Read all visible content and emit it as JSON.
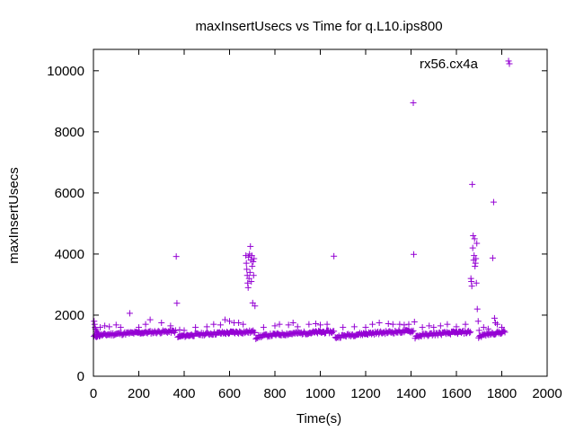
{
  "chart_data": {
    "type": "scatter",
    "title": "maxInsertUsecs vs Time for q.L10.ips800",
    "xlabel": "Time(s)",
    "ylabel": "maxInsertUsecs",
    "xlim": [
      0,
      2000
    ],
    "ylim": [
      0,
      10700
    ],
    "x_ticks": [
      0,
      200,
      400,
      600,
      800,
      1000,
      1200,
      1400,
      1600,
      1800,
      2000
    ],
    "y_ticks": [
      0,
      2000,
      4000,
      6000,
      8000,
      10000
    ],
    "grid": false,
    "legend_position": "top-right",
    "marker": "plus",
    "colors": {
      "series": "#9400d3",
      "axis": "#000000",
      "background": "#ffffff"
    },
    "series": [
      {
        "name": "rx56.cx4a",
        "baseline_segments": [
          {
            "x_start": 2,
            "x_end": 365,
            "y_start": 1290,
            "y_end": 1470,
            "step": 4
          },
          {
            "x_start": 372,
            "x_end": 712,
            "y_start": 1270,
            "y_end": 1460,
            "step": 4
          },
          {
            "x_start": 716,
            "x_end": 1062,
            "y_start": 1260,
            "y_end": 1460,
            "step": 4
          },
          {
            "x_start": 1066,
            "x_end": 1412,
            "y_start": 1250,
            "y_end": 1480,
            "step": 4
          },
          {
            "x_start": 1418,
            "x_end": 1662,
            "y_start": 1280,
            "y_end": 1450,
            "step": 4
          },
          {
            "x_start": 1698,
            "x_end": 1815,
            "y_start": 1270,
            "y_end": 1450,
            "step": 4
          }
        ],
        "points": [
          [
            3,
            1800
          ],
          [
            5,
            1700
          ],
          [
            7,
            1600
          ],
          [
            9,
            1550
          ],
          [
            12,
            1500
          ],
          [
            15,
            1450
          ],
          [
            18,
            1420
          ],
          [
            22,
            1380
          ],
          [
            30,
            1600
          ],
          [
            50,
            1650
          ],
          [
            70,
            1620
          ],
          [
            100,
            1680
          ],
          [
            120,
            1600
          ],
          [
            160,
            2060
          ],
          [
            200,
            1600
          ],
          [
            230,
            1700
          ],
          [
            250,
            1850
          ],
          [
            300,
            1750
          ],
          [
            340,
            1650
          ],
          [
            365,
            3920
          ],
          [
            368,
            2390
          ],
          [
            380,
            1520
          ],
          [
            400,
            1500
          ],
          [
            450,
            1600
          ],
          [
            500,
            1620
          ],
          [
            530,
            1700
          ],
          [
            560,
            1680
          ],
          [
            580,
            1850
          ],
          [
            600,
            1800
          ],
          [
            620,
            1750
          ],
          [
            640,
            1750
          ],
          [
            660,
            1700
          ],
          [
            672,
            3950
          ],
          [
            674,
            3700
          ],
          [
            676,
            3500
          ],
          [
            678,
            3300
          ],
          [
            680,
            3050
          ],
          [
            682,
            2900
          ],
          [
            684,
            3900
          ],
          [
            686,
            3200
          ],
          [
            688,
            4000
          ],
          [
            690,
            3400
          ],
          [
            692,
            4250
          ],
          [
            694,
            3800
          ],
          [
            696,
            3100
          ],
          [
            698,
            3950
          ],
          [
            700,
            3600
          ],
          [
            702,
            2400
          ],
          [
            704,
            3750
          ],
          [
            706,
            3300
          ],
          [
            708,
            3850
          ],
          [
            712,
            2300
          ],
          [
            750,
            1600
          ],
          [
            800,
            1650
          ],
          [
            820,
            1700
          ],
          [
            860,
            1680
          ],
          [
            880,
            1750
          ],
          [
            900,
            1620
          ],
          [
            950,
            1700
          ],
          [
            980,
            1720
          ],
          [
            1000,
            1680
          ],
          [
            1030,
            1700
          ],
          [
            1060,
            3930
          ],
          [
            1100,
            1600
          ],
          [
            1150,
            1620
          ],
          [
            1200,
            1600
          ],
          [
            1230,
            1700
          ],
          [
            1260,
            1750
          ],
          [
            1300,
            1720
          ],
          [
            1320,
            1700
          ],
          [
            1350,
            1700
          ],
          [
            1370,
            1680
          ],
          [
            1390,
            1700
          ],
          [
            1410,
            8950
          ],
          [
            1412,
            3990
          ],
          [
            1415,
            1780
          ],
          [
            1450,
            1600
          ],
          [
            1480,
            1650
          ],
          [
            1500,
            1600
          ],
          [
            1530,
            1650
          ],
          [
            1560,
            1700
          ],
          [
            1600,
            1620
          ],
          [
            1640,
            1700
          ],
          [
            1664,
            3200
          ],
          [
            1666,
            3100
          ],
          [
            1668,
            2950
          ],
          [
            1670,
            6280
          ],
          [
            1672,
            4200
          ],
          [
            1674,
            4600
          ],
          [
            1676,
            3800
          ],
          [
            1678,
            3950
          ],
          [
            1680,
            4500
          ],
          [
            1682,
            3600
          ],
          [
            1684,
            3700
          ],
          [
            1686,
            3850
          ],
          [
            1688,
            3050
          ],
          [
            1690,
            4350
          ],
          [
            1692,
            2200
          ],
          [
            1696,
            1800
          ],
          [
            1700,
            1500
          ],
          [
            1720,
            1600
          ],
          [
            1740,
            1550
          ],
          [
            1760,
            3870
          ],
          [
            1764,
            5700
          ],
          [
            1768,
            1900
          ],
          [
            1772,
            1750
          ],
          [
            1780,
            1700
          ],
          [
            1800,
            1600
          ],
          [
            1830,
            10320
          ]
        ]
      }
    ]
  }
}
